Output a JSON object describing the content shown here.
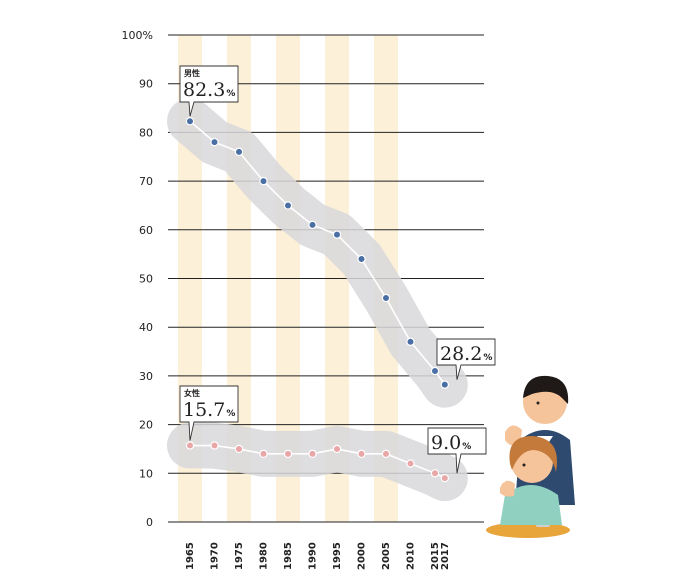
{
  "chart_data": {
    "type": "line",
    "x": [
      1965,
      1970,
      1975,
      1980,
      1985,
      1990,
      1995,
      2000,
      2005,
      2010,
      2015,
      2017
    ],
    "ylim": [
      0,
      100
    ],
    "yticks": [
      0,
      10,
      20,
      30,
      40,
      50,
      60,
      70,
      80,
      90,
      100
    ],
    "ytick_labels": [
      "0",
      "10",
      "20",
      "30",
      "40",
      "50",
      "60",
      "70",
      "80",
      "90",
      "100%"
    ],
    "xtick_labels": [
      "1965",
      "1970",
      "1975",
      "1980",
      "1985",
      "1990",
      "1995",
      "2000",
      "2005",
      "2010",
      "2015",
      "2017"
    ],
    "grid": "horizontal",
    "series": [
      {
        "name": "男性",
        "color": "#4a6fa5",
        "line_color": "#ffffff",
        "band_color": "#d8d8dc",
        "values": [
          82.3,
          78,
          76,
          70,
          65,
          61,
          59,
          54,
          46,
          37,
          31,
          28.2
        ]
      },
      {
        "name": "女性",
        "color": "#e9a6a6",
        "line_color": "#ffffff",
        "band_color": "#d8d8dc",
        "values": [
          15.7,
          15.7,
          15,
          14,
          14,
          14,
          15,
          14,
          14,
          12,
          10,
          9.0
        ]
      }
    ],
    "annotations": [
      {
        "series": 0,
        "label": "男性",
        "value_text": "82.3",
        "unit": "%"
      },
      {
        "series": 0,
        "label": "",
        "value_text": "28.2",
        "unit": "%"
      },
      {
        "series": 1,
        "label": "女性",
        "value_text": "15.7",
        "unit": "%"
      },
      {
        "series": 1,
        "label": "",
        "value_text": "9.0",
        "unit": "%"
      }
    ]
  },
  "colors": {
    "stripe": "#fdf0d8",
    "gridline": "#222222"
  },
  "illustration": {
    "name": "two-smokers-illustration"
  }
}
